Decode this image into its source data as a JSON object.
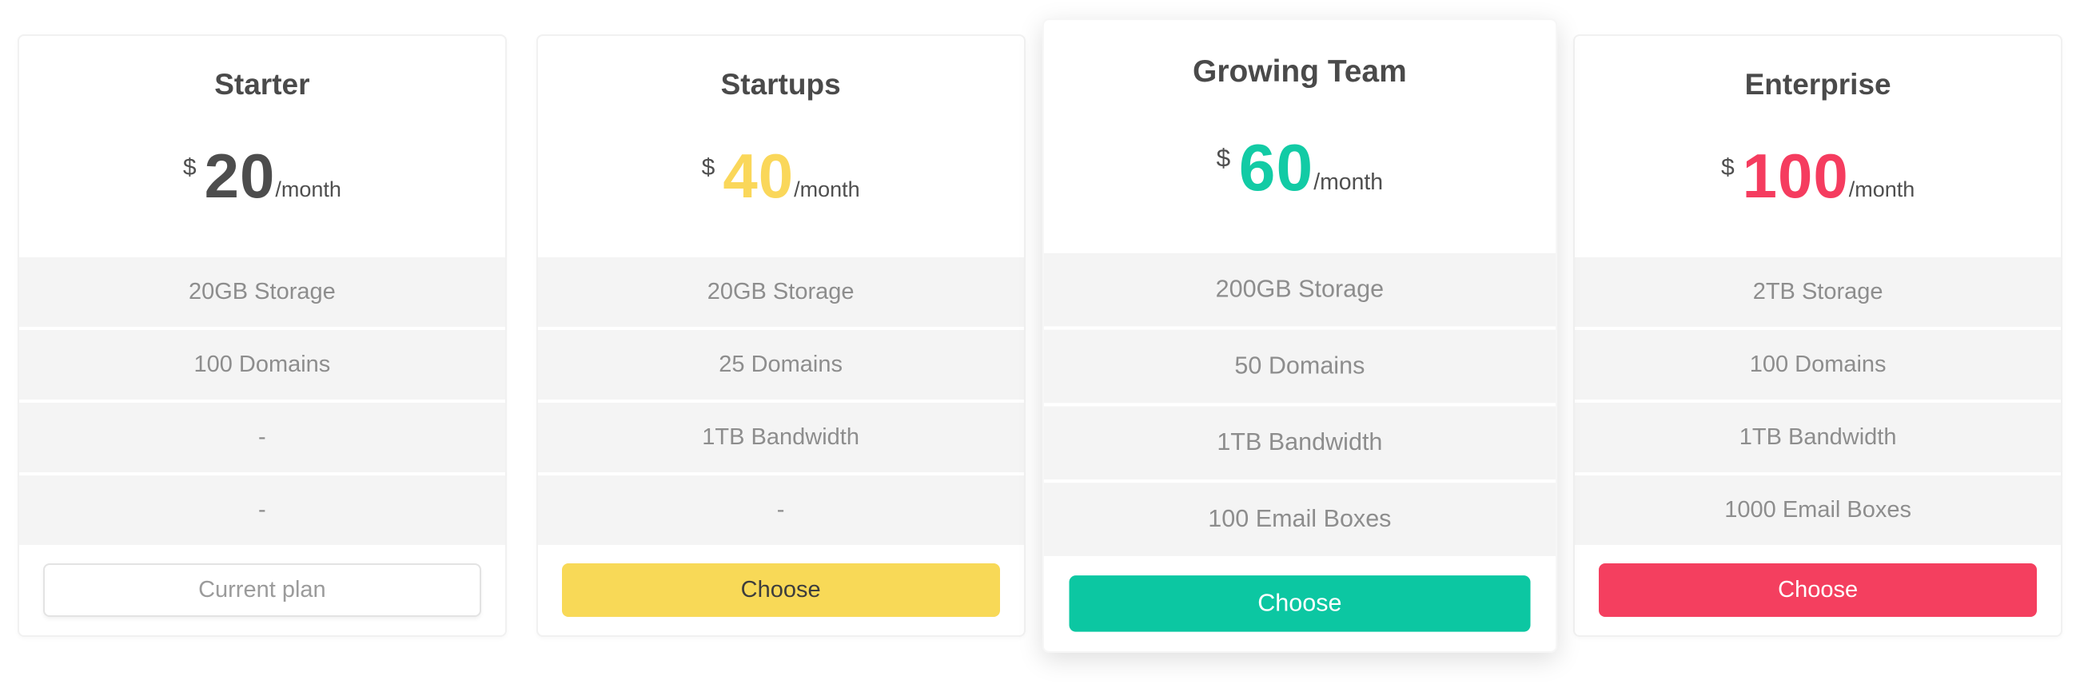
{
  "page": {
    "background": "#ffffff",
    "feature_row_background": "#f4f4f4",
    "title_color": "#4a4a4a",
    "feature_text_color": "#8d8d8d"
  },
  "plans": [
    {
      "id": "starter",
      "title": "Starter",
      "currency": "$",
      "amount": "20",
      "period": "/month",
      "accent": "#4d4d4d",
      "features": [
        "20GB Storage",
        "100 Domains",
        "-",
        "-"
      ],
      "featured": false,
      "button": {
        "label": "Current plan",
        "style": "outline",
        "background": "#ffffff",
        "border_color": "#e3e3e3",
        "text_color": "#9b9b9b"
      }
    },
    {
      "id": "startups",
      "title": "Startups",
      "currency": "$",
      "amount": "40",
      "period": "/month",
      "accent": "#fad75a",
      "features": [
        "20GB Storage",
        "25 Domains",
        "1TB Bandwidth",
        "-"
      ],
      "featured": false,
      "button": {
        "label": "Choose",
        "style": "yellow",
        "background": "#f8d957",
        "text_color": "#3d3d3d"
      }
    },
    {
      "id": "growing-team",
      "title": "Growing Team",
      "currency": "$",
      "amount": "60",
      "period": "/month",
      "accent": "#12cba5",
      "features": [
        "200GB Storage",
        "50 Domains",
        "1TB Bandwidth",
        "100 Email Boxes"
      ],
      "featured": true,
      "button": {
        "label": "Choose",
        "style": "teal",
        "background": "#0cc7a2",
        "text_color": "#ffffff"
      }
    },
    {
      "id": "enterprise",
      "title": "Enterprise",
      "currency": "$",
      "amount": "100",
      "period": "/month",
      "accent": "#f53c5f",
      "features": [
        "2TB Storage",
        "100 Domains",
        "1TB Bandwidth",
        "1000 Email Boxes"
      ],
      "featured": false,
      "button": {
        "label": "Choose",
        "style": "pink",
        "background": "#f43f5f",
        "text_color": "#ffffff"
      }
    }
  ]
}
